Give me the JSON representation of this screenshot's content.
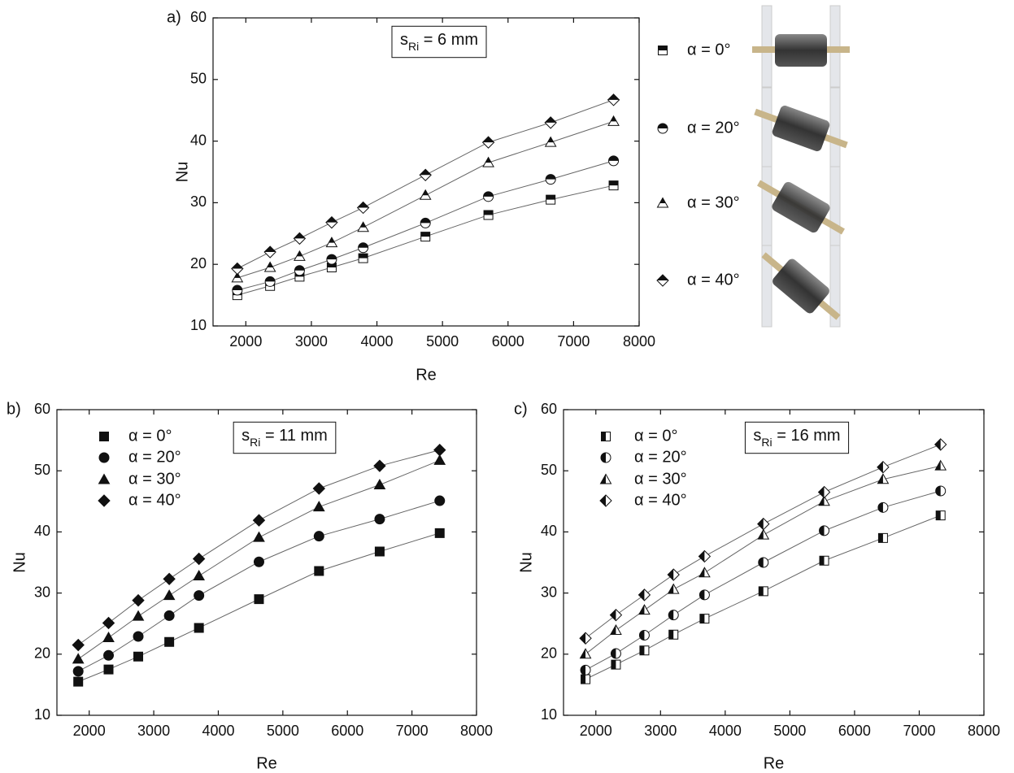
{
  "chart_data": [
    {
      "type": "scatter",
      "panel_label": "a)",
      "x_label": "Re",
      "y_label": "Nu",
      "annotation": [
        "s",
        "Ri",
        " = 6 mm"
      ],
      "legend": "outside right",
      "marker_fill": "top",
      "xlim": [
        1500,
        8000
      ],
      "xticks": [
        2000,
        3000,
        4000,
        5000,
        6000,
        7000,
        8000
      ],
      "ylim": [
        10,
        60
      ],
      "yticks": [
        10,
        20,
        30,
        40,
        50,
        60
      ],
      "x": [
        1870,
        2370,
        2820,
        3310,
        3790,
        4740,
        5700,
        6650,
        7610
      ],
      "series": [
        {
          "name": "α = 0°",
          "marker": "square",
          "color": "#111111",
          "values": [
            15.0,
            16.5,
            18.0,
            19.5,
            21.0,
            24.5,
            28.0,
            30.5,
            32.8
          ]
        },
        {
          "name": "α = 20°",
          "marker": "circle",
          "color": "#111111",
          "values": [
            15.8,
            17.2,
            19.0,
            20.8,
            22.7,
            26.7,
            31.0,
            33.8,
            36.8
          ]
        },
        {
          "name": "α = 30°",
          "marker": "triangle",
          "color": "#111111",
          "values": [
            17.8,
            19.5,
            21.3,
            23.5,
            26.0,
            31.2,
            36.5,
            39.8,
            43.2
          ]
        },
        {
          "name": "α = 40°",
          "marker": "diamond",
          "color": "#111111",
          "values": [
            19.3,
            22.0,
            24.2,
            26.8,
            29.2,
            34.5,
            39.8,
            43.0,
            46.7
          ]
        }
      ]
    },
    {
      "type": "scatter",
      "panel_label": "b)",
      "x_label": "Re",
      "y_label": "Nu",
      "annotation": [
        "s",
        "Ri",
        " = 11 mm"
      ],
      "legend": "upper left",
      "marker_fill": "full",
      "xlim": [
        1500,
        8000
      ],
      "xticks": [
        2000,
        3000,
        4000,
        5000,
        6000,
        7000,
        8000
      ],
      "ylim": [
        10,
        60
      ],
      "yticks": [
        10,
        20,
        30,
        40,
        50,
        60
      ],
      "x": [
        1830,
        2300,
        2760,
        3240,
        3700,
        4630,
        5560,
        6500,
        7430
      ],
      "series": [
        {
          "name": "α = 0°",
          "marker": "square",
          "color": "#111111",
          "values": [
            15.5,
            17.5,
            19.6,
            22.0,
            24.3,
            29.0,
            33.6,
            36.8,
            39.8
          ]
        },
        {
          "name": "α = 20°",
          "marker": "circle",
          "color": "#111111",
          "values": [
            17.2,
            19.8,
            22.9,
            26.3,
            29.6,
            35.1,
            39.3,
            42.1,
            45.1
          ]
        },
        {
          "name": "α = 30°",
          "marker": "triangle",
          "color": "#111111",
          "values": [
            19.2,
            22.7,
            26.2,
            29.6,
            32.8,
            39.1,
            44.1,
            47.7,
            51.7
          ]
        },
        {
          "name": "α = 40°",
          "marker": "diamond",
          "color": "#111111",
          "values": [
            21.5,
            25.1,
            28.8,
            32.3,
            35.6,
            41.9,
            47.1,
            50.8,
            53.4
          ]
        }
      ]
    },
    {
      "type": "scatter",
      "panel_label": "c)",
      "x_label": "Re",
      "y_label": "Nu",
      "annotation": [
        "s",
        "Ri",
        " = 16 mm"
      ],
      "legend": "upper left",
      "marker_fill": "left",
      "xlim": [
        1500,
        8000
      ],
      "xticks": [
        2000,
        3000,
        4000,
        5000,
        6000,
        7000,
        8000
      ],
      "ylim": [
        10,
        60
      ],
      "yticks": [
        10,
        20,
        30,
        40,
        50,
        60
      ],
      "x": [
        1840,
        2310,
        2750,
        3200,
        3680,
        4590,
        5530,
        6440,
        7330
      ],
      "series": [
        {
          "name": "α = 0°",
          "marker": "square",
          "color": "#111111",
          "values": [
            15.9,
            18.3,
            20.6,
            23.2,
            25.8,
            30.3,
            35.3,
            39.0,
            42.7
          ]
        },
        {
          "name": "α = 20°",
          "marker": "circle",
          "color": "#111111",
          "values": [
            17.4,
            20.1,
            23.1,
            26.4,
            29.7,
            35.0,
            40.2,
            44.0,
            46.7
          ]
        },
        {
          "name": "α = 30°",
          "marker": "triangle",
          "color": "#111111",
          "values": [
            20.0,
            23.9,
            27.2,
            30.6,
            33.3,
            39.5,
            45.0,
            48.6,
            50.8
          ]
        },
        {
          "name": "α = 40°",
          "marker": "diamond",
          "color": "#111111",
          "values": [
            22.6,
            26.4,
            29.7,
            33.0,
            36.0,
            41.3,
            46.5,
            50.6,
            54.3
          ]
        }
      ]
    }
  ]
}
